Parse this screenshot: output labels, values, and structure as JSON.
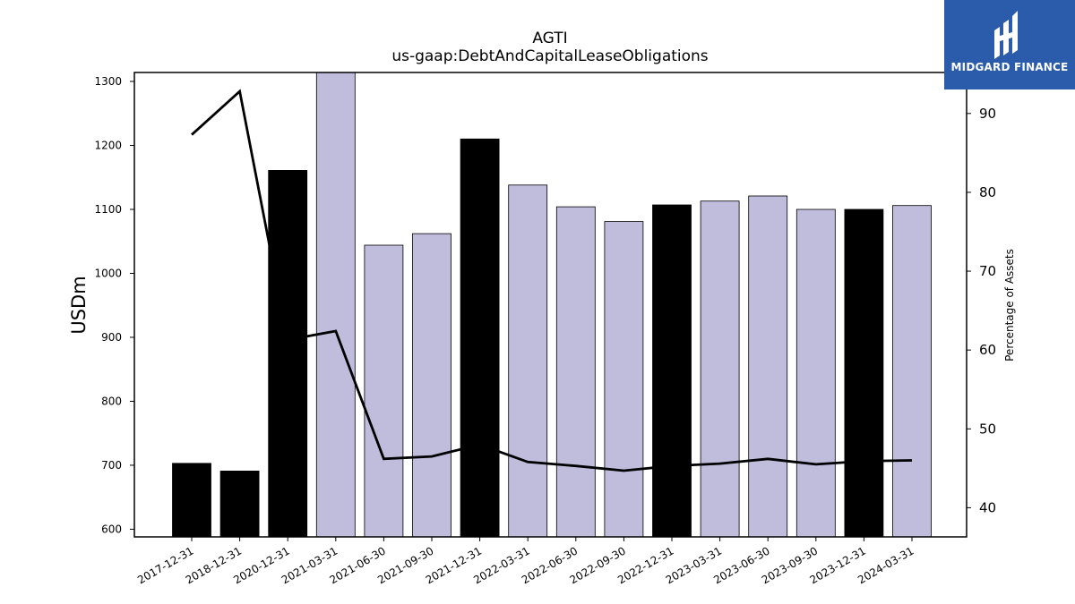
{
  "chart_data": {
    "type": "bar",
    "title": "AGTI",
    "subtitle": "us-gaap:DebtAndCapitalLeaseObligations",
    "ylabel": "USDm",
    "y2label": "Percentage of Assets",
    "categories": [
      "2017-12-31",
      "2018-12-31",
      "2020-12-31",
      "2021-03-31",
      "2021-06-30",
      "2021-09-30",
      "2021-12-31",
      "2022-03-31",
      "2022-06-30",
      "2022-09-30",
      "2022-12-31",
      "2023-03-31",
      "2023-06-30",
      "2023-09-30",
      "2023-12-31",
      "2024-03-31"
    ],
    "series": [
      {
        "type": "bar",
        "axis": "left",
        "values": [
          703,
          691,
          1161,
          1315,
          1044,
          1062,
          1210,
          1138,
          1104,
          1081,
          1107,
          1113,
          1121,
          1100,
          1100,
          1106
        ],
        "annual": [
          true,
          true,
          true,
          false,
          false,
          false,
          true,
          false,
          false,
          false,
          true,
          false,
          false,
          false,
          true,
          false
        ]
      },
      {
        "type": "line",
        "axis": "right",
        "values": [
          87.3,
          92.8,
          61.3,
          62.4,
          46.2,
          46.5,
          48.0,
          45.8,
          45.3,
          44.7,
          45.3,
          45.6,
          46.2,
          45.5,
          45.9,
          46.0
        ]
      }
    ],
    "ylim": [
      588,
      1314
    ],
    "y2lim": [
      36.3,
      95.2
    ],
    "yticks": [
      600,
      700,
      800,
      900,
      1000,
      1100,
      1200,
      1300
    ],
    "y2ticks": [
      40,
      50,
      60,
      70,
      80,
      90
    ],
    "colors": {
      "annual": "#000000",
      "quarter": "#bfbcdc",
      "line": "#000000"
    },
    "grid": false
  },
  "logo": {
    "text": "MIDGARD FINANCE",
    "background": "#2b5bab"
  }
}
